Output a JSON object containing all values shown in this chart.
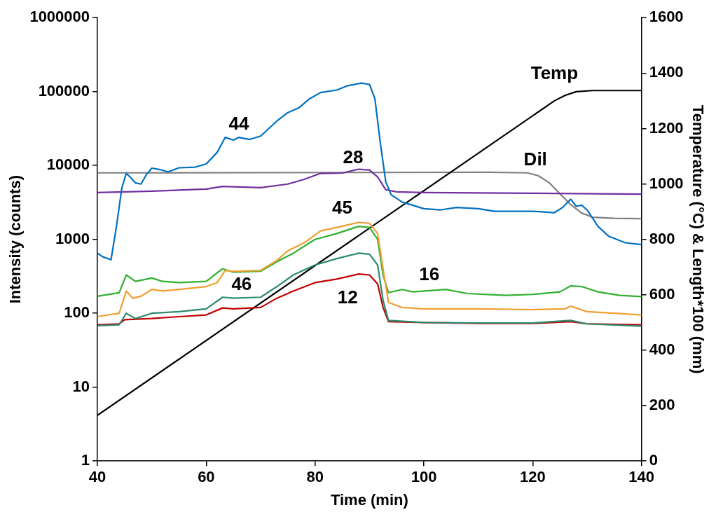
{
  "chart_data": {
    "type": "line",
    "xlabel": "Time (min)",
    "ylabel": "Intensity (counts)",
    "y2label": "Temperature (°C) & Length*100 (mm)",
    "xlim": [
      40,
      140
    ],
    "xticks": [
      40,
      60,
      80,
      100,
      120,
      140
    ],
    "ylim": [
      1,
      1000000
    ],
    "yticks": [
      1,
      10,
      100,
      1000,
      10000,
      100000,
      1000000
    ],
    "y2lim": [
      0,
      1600
    ],
    "y2ticks": [
      0,
      200,
      400,
      600,
      800,
      1000,
      1200,
      1400,
      1600
    ],
    "log": "y",
    "grid": false,
    "legend": false,
    "marker": "none",
    "line_style": "solid",
    "series": [
      {
        "name": "44",
        "color": "#0070c0",
        "x": [
          40,
          41,
          42.5,
          43.5,
          44.5,
          45.3,
          46,
          47,
          48,
          49,
          50,
          51.5,
          53,
          55,
          58,
          60,
          62,
          63.5,
          65,
          66,
          68,
          70,
          73,
          75,
          77,
          79,
          81,
          84,
          86,
          88.5,
          90,
          91,
          92,
          93,
          94,
          96,
          100,
          103,
          106,
          110,
          113,
          118,
          120,
          124,
          125.5,
          127,
          128,
          129,
          130,
          132,
          134,
          137,
          140
        ],
        "values": [
          650,
          580,
          530,
          1500,
          5000,
          7800,
          7000,
          5800,
          5600,
          7500,
          9200,
          8800,
          8200,
          9300,
          9500,
          10500,
          15000,
          24000,
          22000,
          24000,
          22500,
          25000,
          40000,
          52000,
          60000,
          80000,
          97000,
          105000,
          120000,
          130000,
          125000,
          80000,
          20000,
          6000,
          4000,
          3200,
          2600,
          2500,
          2700,
          2600,
          2400,
          2400,
          2400,
          2300,
          2700,
          3500,
          2800,
          2900,
          2500,
          1500,
          1100,
          900,
          850
        ]
      },
      {
        "name": "28",
        "color": "#7030a0",
        "x": [
          40,
          50,
          60,
          63,
          70,
          75,
          78,
          81,
          85,
          88,
          90,
          91.5,
          93,
          95,
          100,
          120,
          140
        ],
        "values": [
          4300,
          4500,
          4800,
          5200,
          5000,
          5600,
          6500,
          7800,
          7900,
          8900,
          8700,
          7000,
          4700,
          4400,
          4300,
          4200,
          4100
        ]
      },
      {
        "name": "45",
        "color": "#f0a030",
        "x": [
          40,
          44,
          45.3,
          46.5,
          48,
          50,
          52,
          55,
          60,
          62,
          63.5,
          65,
          70,
          73,
          75,
          78,
          81,
          84,
          88,
          90,
          91.5,
          92.5,
          93.5,
          96,
          100,
          110,
          120,
          126,
          127,
          128,
          130,
          135,
          140
        ],
        "values": [
          90,
          100,
          200,
          160,
          170,
          210,
          200,
          210,
          230,
          260,
          380,
          370,
          380,
          520,
          700,
          900,
          1300,
          1450,
          1700,
          1650,
          1200,
          400,
          140,
          120,
          115,
          115,
          112,
          115,
          125,
          118,
          105,
          100,
          95
        ]
      },
      {
        "name": "16",
        "color": "#30b030",
        "x": [
          40,
          44,
          45.3,
          47,
          50,
          52,
          55,
          60,
          63,
          65,
          70,
          73,
          76,
          80,
          84,
          88,
          90,
          91.5,
          92.5,
          93.5,
          96,
          98,
          102,
          104,
          108,
          115,
          120,
          125,
          127,
          129,
          132,
          136,
          140
        ],
        "values": [
          170,
          190,
          330,
          270,
          300,
          270,
          260,
          270,
          400,
          360,
          370,
          500,
          650,
          1000,
          1200,
          1500,
          1450,
          1000,
          330,
          190,
          210,
          195,
          205,
          210,
          185,
          175,
          180,
          195,
          235,
          230,
          195,
          175,
          168
        ]
      },
      {
        "name": "46",
        "color": "#2e8b70",
        "x": [
          40,
          44,
          45.3,
          47,
          50,
          55,
          60,
          63,
          65,
          70,
          73,
          76,
          80,
          84,
          88,
          90,
          91.5,
          92.5,
          93.5,
          100,
          110,
          120,
          127,
          130,
          140
        ],
        "values": [
          68,
          70,
          100,
          85,
          100,
          105,
          115,
          165,
          160,
          165,
          230,
          330,
          450,
          550,
          650,
          630,
          450,
          150,
          80,
          75,
          74,
          74,
          80,
          72,
          67
        ]
      },
      {
        "name": "12",
        "color": "#c00000",
        "x": [
          40,
          44,
          45,
          50,
          55,
          60,
          63,
          65,
          70,
          73,
          76,
          80,
          84,
          88,
          90,
          91.5,
          92.5,
          93.5,
          100,
          110,
          120,
          127,
          130,
          140
        ],
        "values": [
          70,
          72,
          82,
          85,
          90,
          95,
          118,
          115,
          120,
          160,
          200,
          260,
          290,
          340,
          330,
          250,
          120,
          77,
          75,
          73,
          73,
          77,
          72,
          70
        ]
      },
      {
        "name": "Temp",
        "color": "#000000",
        "axis": "y2",
        "x": [
          40,
          124,
          126,
          128,
          131,
          140
        ],
        "values": [
          165,
          1300,
          1320,
          1333,
          1337,
          1337
        ]
      },
      {
        "name": "Dil",
        "color": "#808080",
        "axis": "y2",
        "x": [
          40,
          112,
          119,
          121,
          123,
          125,
          127,
          129,
          131,
          135,
          140
        ],
        "values": [
          1040,
          1042,
          1040,
          1030,
          1005,
          965,
          925,
          895,
          880,
          876,
          875
        ]
      }
    ]
  }
}
